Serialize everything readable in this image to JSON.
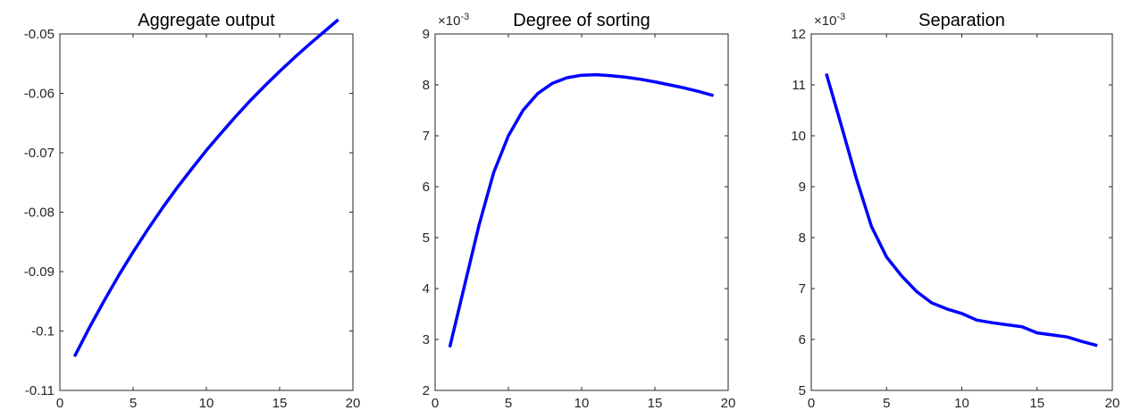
{
  "chart_data": [
    {
      "type": "line",
      "title": "Aggregate output",
      "xlabel": "",
      "ylabel": "",
      "multiplier": "",
      "xlim": [
        0,
        20
      ],
      "ylim": [
        -0.11,
        -0.05
      ],
      "xticks": [
        0,
        5,
        10,
        15,
        20
      ],
      "xtick_labels": [
        "0",
        "5",
        "10",
        "15",
        "20"
      ],
      "yticks": [
        -0.11,
        -0.1,
        -0.09,
        -0.08,
        -0.07,
        -0.06,
        -0.05
      ],
      "ytick_labels": [
        "-0.11",
        "-0.1",
        "-0.09",
        "-0.08",
        "-0.07",
        "-0.06",
        "-0.05"
      ],
      "grid": false,
      "color": "#0000ff",
      "x": [
        1,
        2,
        3,
        4,
        5,
        6,
        7,
        8,
        9,
        10,
        11,
        12,
        13,
        14,
        15,
        16,
        17,
        18,
        19
      ],
      "y": [
        -0.1043,
        -0.0995,
        -0.095,
        -0.0907,
        -0.0867,
        -0.0829,
        -0.0793,
        -0.0759,
        -0.0727,
        -0.0696,
        -0.0667,
        -0.0639,
        -0.0612,
        -0.0587,
        -0.0563,
        -0.054,
        -0.0518,
        -0.0497,
        -0.0476
      ]
    },
    {
      "type": "line",
      "title": "Degree of sorting",
      "xlabel": "",
      "ylabel": "",
      "multiplier": "×10",
      "multiplier_exp": "-3",
      "xlim": [
        0,
        20
      ],
      "ylim": [
        2,
        9
      ],
      "xticks": [
        0,
        5,
        10,
        15,
        20
      ],
      "xtick_labels": [
        "0",
        "5",
        "10",
        "15",
        "20"
      ],
      "yticks": [
        2,
        3,
        4,
        5,
        6,
        7,
        8,
        9
      ],
      "ytick_labels": [
        "2",
        "3",
        "4",
        "5",
        "6",
        "7",
        "8",
        "9"
      ],
      "grid": false,
      "color": "#0000ff",
      "x": [
        1,
        2,
        3,
        4,
        5,
        6,
        7,
        8,
        9,
        10,
        11,
        12,
        13,
        14,
        15,
        16,
        17,
        18,
        19
      ],
      "y": [
        2.85,
        4.05,
        5.25,
        6.28,
        7.0,
        7.5,
        7.83,
        8.03,
        8.14,
        8.19,
        8.2,
        8.18,
        8.15,
        8.11,
        8.06,
        8.0,
        7.94,
        7.87,
        7.79
      ]
    },
    {
      "type": "line",
      "title": "Separation",
      "xlabel": "",
      "ylabel": "",
      "multiplier": "×10",
      "multiplier_exp": "-3",
      "xlim": [
        0,
        20
      ],
      "ylim": [
        5,
        12
      ],
      "xticks": [
        0,
        5,
        10,
        15,
        20
      ],
      "xtick_labels": [
        "0",
        "5",
        "10",
        "15",
        "20"
      ],
      "yticks": [
        5,
        6,
        7,
        8,
        9,
        10,
        11,
        12
      ],
      "ytick_labels": [
        "5",
        "6",
        "7",
        "8",
        "9",
        "10",
        "11",
        "12"
      ],
      "grid": false,
      "color": "#0000ff",
      "x": [
        1,
        2,
        3,
        4,
        5,
        6,
        7,
        8,
        9,
        10,
        11,
        12,
        13,
        14,
        15,
        16,
        17,
        18,
        19
      ],
      "y": [
        11.22,
        10.2,
        9.16,
        8.22,
        7.62,
        7.25,
        6.94,
        6.72,
        6.6,
        6.51,
        6.38,
        6.33,
        6.29,
        6.25,
        6.13,
        6.09,
        6.05,
        5.96,
        5.88
      ]
    }
  ]
}
